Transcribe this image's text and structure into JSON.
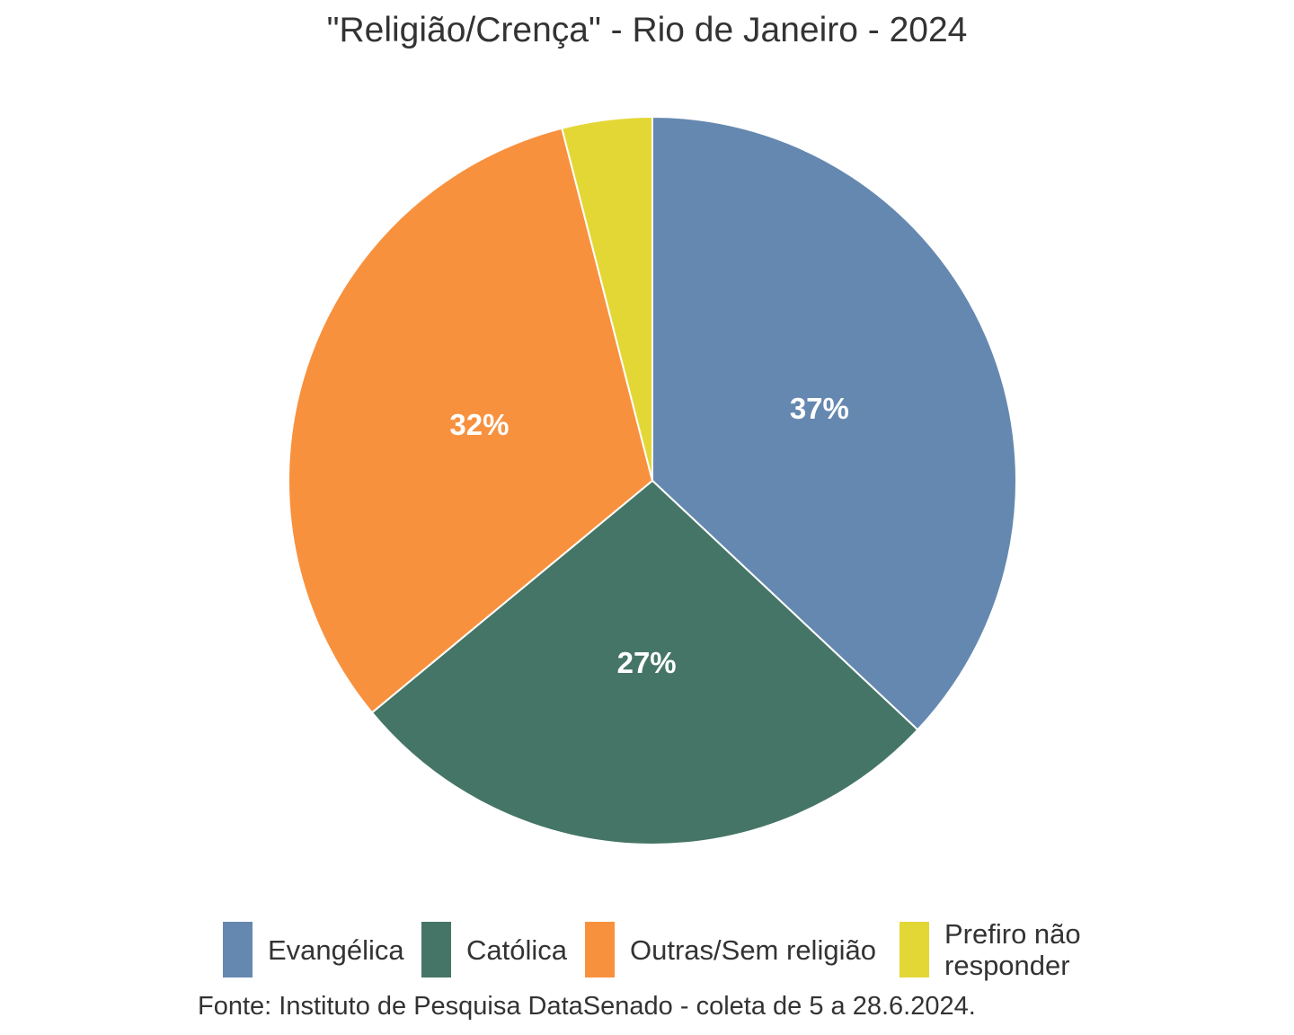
{
  "chart_data": {
    "type": "pie",
    "title": "\"Religião/Crença\" - Rio de Janeiro - 2024",
    "caption": "Fonte: Instituto de Pesquisa DataSenado - coleta de 5 a 28.6.2024.",
    "slices": [
      {
        "label": "Evangélica",
        "value": 37,
        "value_label": "37%",
        "color": "#6588B0"
      },
      {
        "label": "Católica",
        "value": 27,
        "value_label": "27%",
        "color": "#457566"
      },
      {
        "label": "Outras/Sem religião",
        "value": 32,
        "value_label": "32%",
        "color": "#F8913E"
      },
      {
        "label": "Prefiro não responder",
        "value": 4,
        "value_label": "",
        "color": "#E3D736"
      }
    ],
    "legend": {
      "position": "bottom",
      "items": [
        "Evangélica",
        "Católica",
        "Outras/Sem religião",
        "Prefiro não responder"
      ]
    },
    "slice_border_color": "#ffffff",
    "value_label_color": "#ffffff"
  }
}
